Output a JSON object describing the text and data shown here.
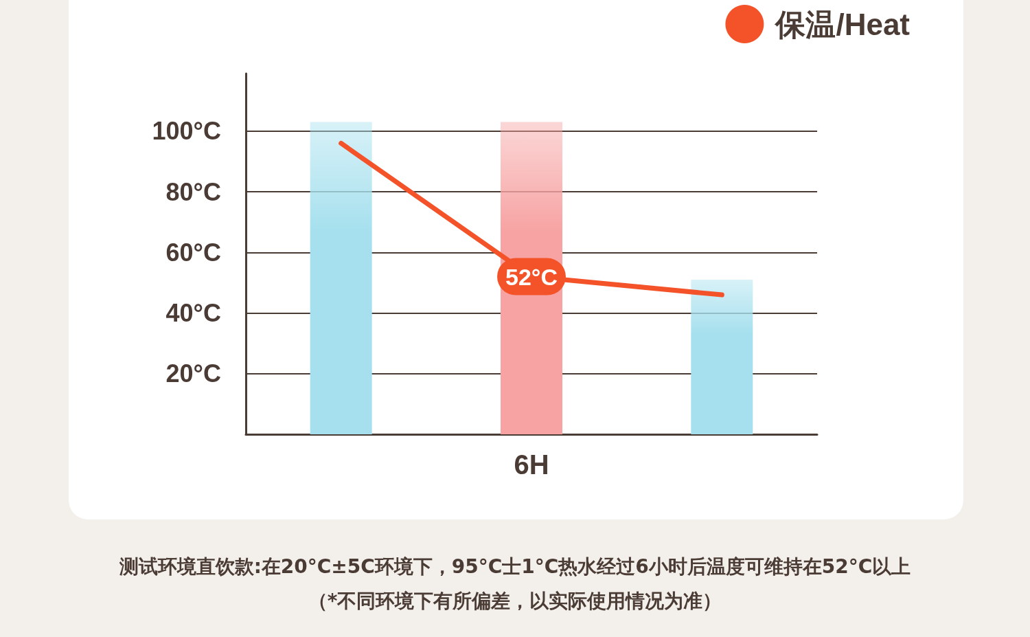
{
  "chart_data": {
    "type": "bar",
    "categories": [
      null,
      "6H",
      null
    ],
    "values": [
      103,
      103,
      51
    ],
    "colors": [
      "#a6e0ee",
      "#f7a3a3",
      "#a6e0ee"
    ],
    "ylim": [
      0,
      119
    ],
    "yticks": [
      {
        "value": 20,
        "label": "20°C"
      },
      {
        "value": 40,
        "label": "40°C"
      },
      {
        "value": 60,
        "label": "60°C"
      },
      {
        "value": 80,
        "label": "80°C"
      },
      {
        "value": 100,
        "label": "100°C"
      }
    ],
    "grid": "y",
    "legend": "top right",
    "series": [
      {
        "type": "line",
        "name": "保温/Heat",
        "color": "#f4532a",
        "marker": "none",
        "values": [
          96,
          52,
          46
        ],
        "value_labels": [
          null,
          "52°C",
          null
        ]
      }
    ],
    "annotations": [
      "测试环境直饮款:在20°C±5C环境下，95°C士1°C热水经过6小时后温度可维持在52°C以上",
      "（*不同环境下有所偏差，以实际使用情况为准）"
    ]
  }
}
